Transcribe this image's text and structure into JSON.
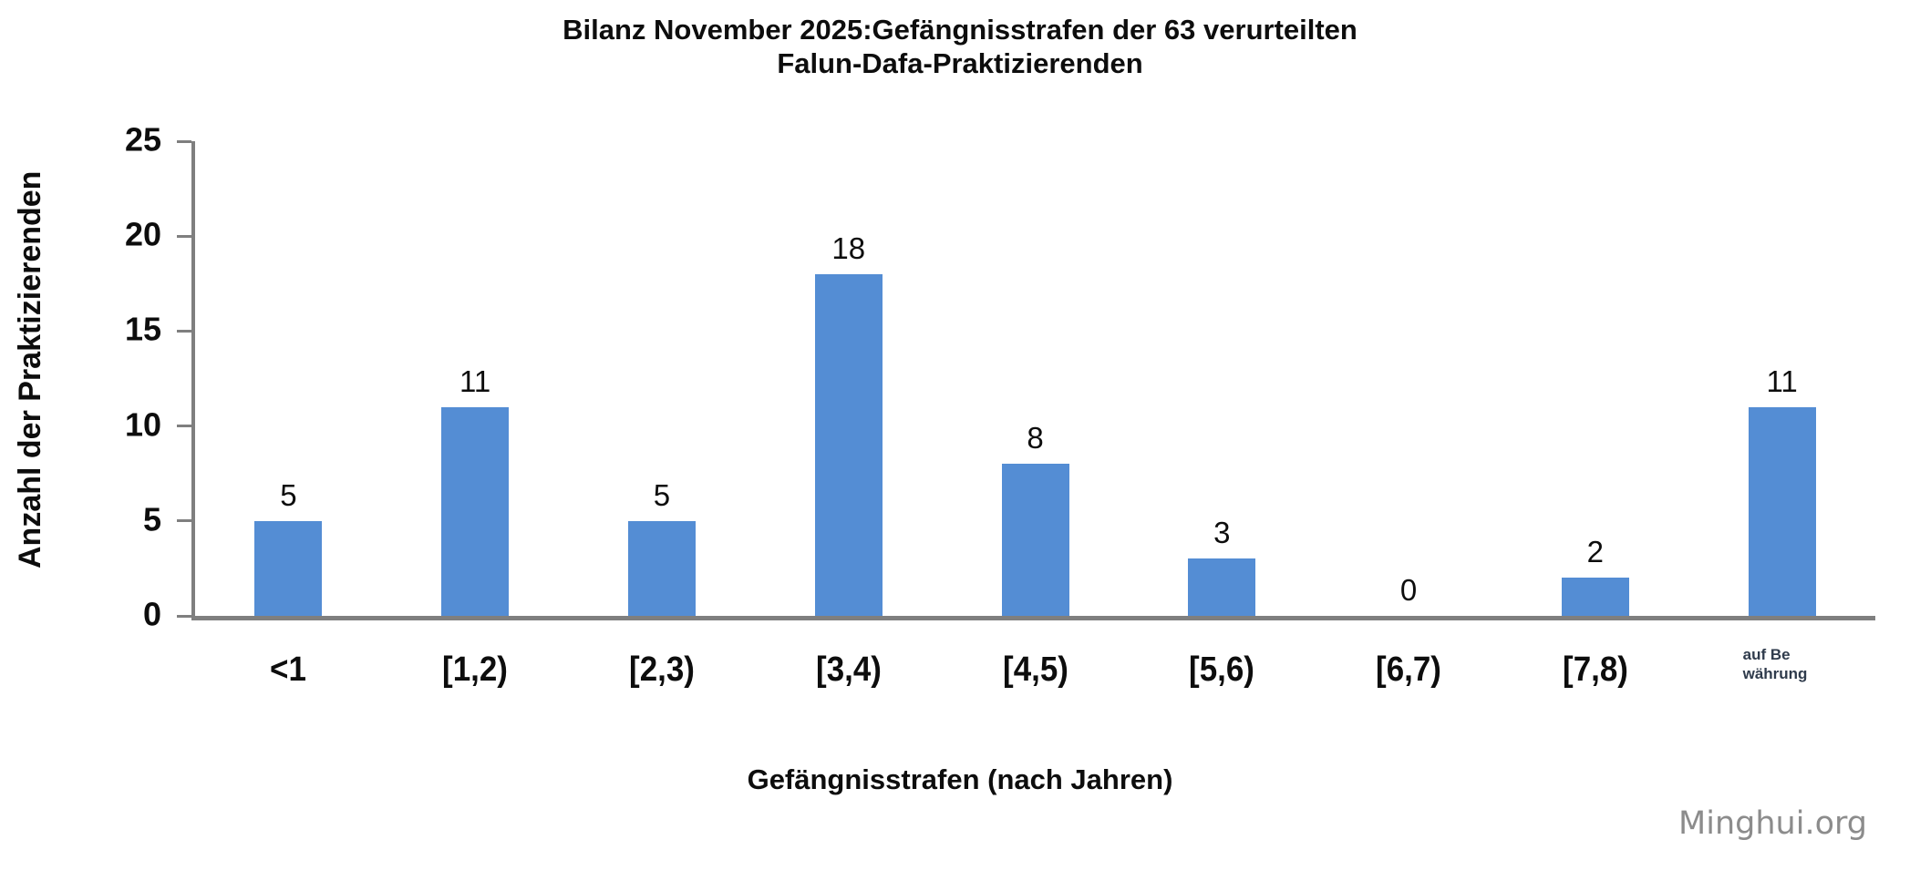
{
  "chart_data": {
    "type": "bar",
    "title": "Bilanz November 2025:Gefängnisstrafen der 63 verurteilten Falun-Dafa-Praktizierenden",
    "title_lines": [
      "Bilanz November 2025:Gefängnisstrafen der 63 verurteilten",
      "Falun-Dafa-Praktizierenden"
    ],
    "categories": [
      "<1",
      "[1,2)",
      "[2,3)",
      "[3,4)",
      "[4,5)",
      "[5,6)",
      "[6,7)",
      "[7,8)",
      "auf Be\nwährung"
    ],
    "values": [
      5,
      11,
      5,
      18,
      8,
      3,
      0,
      2,
      11
    ],
    "xlabel": "Gefängnisstrafen (nach Jahren)",
    "ylabel": "Anzahl der Praktizierenden",
    "ylim": [
      0,
      25
    ],
    "yticks": [
      0,
      5,
      10,
      15,
      20,
      25
    ],
    "grid": false,
    "legend": false,
    "bar_color": "#548dd4",
    "axis_color": "#7f7f7f",
    "label_color": "#0d0d0d",
    "small_category_color": "#2f3b4c"
  },
  "watermark": "Minghui.org"
}
